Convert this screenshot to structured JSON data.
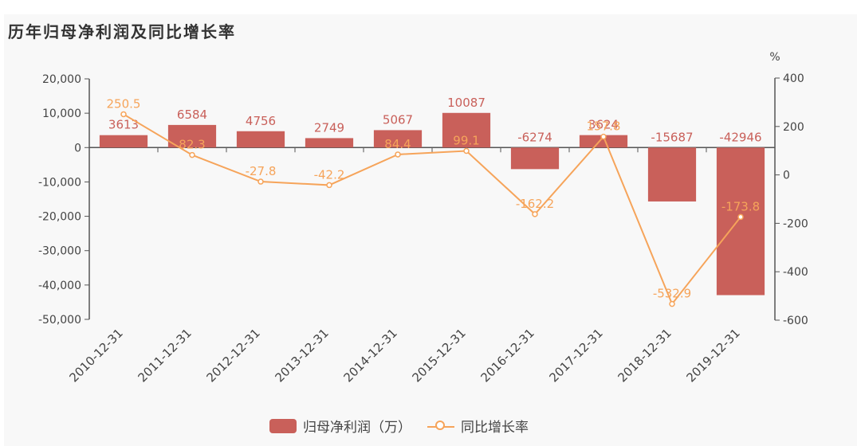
{
  "title": "历年归母净利润及同比增长率",
  "colors": {
    "bar": "#c9605a",
    "line": "#f6a45a",
    "axis": "#555555",
    "text": "#444444"
  },
  "legend": {
    "bar_label": "归母净利润（万）",
    "line_label": "同比增长率"
  },
  "chart_data": {
    "type": "bar+line",
    "title": "历年归母净利润及同比增长率",
    "categories": [
      "2010-12-31",
      "2011-12-31",
      "2012-12-31",
      "2013-12-31",
      "2014-12-31",
      "2015-12-31",
      "2016-12-31",
      "2017-12-31",
      "2018-12-31",
      "2019-12-31"
    ],
    "series": [
      {
        "name": "归母净利润（万）",
        "type": "bar",
        "axis": "left",
        "values": [
          3613,
          6584,
          4756,
          2749,
          5067,
          10087,
          -6274,
          3624,
          -15687,
          -42946
        ]
      },
      {
        "name": "同比增长率",
        "type": "line",
        "axis": "right",
        "values": [
          250.5,
          82.3,
          -27.8,
          -42.2,
          84.4,
          99.1,
          -162.2,
          157.8,
          -532.9,
          -173.8
        ]
      }
    ],
    "y_left": {
      "ticks": [
        "20,000",
        "10,000",
        "0",
        "-10,000",
        "-20,000",
        "-30,000",
        "-40,000",
        "-50,000"
      ],
      "range": [
        -50000,
        20000
      ]
    },
    "y_right": {
      "label": "%",
      "ticks": [
        "400",
        "200",
        "0",
        "-200",
        "-400",
        "-600"
      ],
      "range": [
        -600,
        400
      ]
    },
    "legend_position": "bottom"
  }
}
